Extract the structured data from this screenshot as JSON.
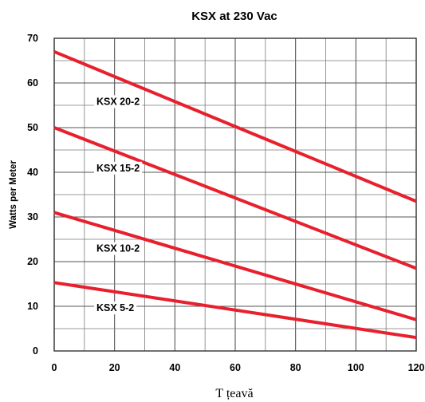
{
  "chart_data": {
    "type": "line",
    "title": "KSX at 230 Vac",
    "xlabel": "T țeavă",
    "ylabel": "Watts per Meter",
    "xlim": [
      0,
      120
    ],
    "ylim": [
      0,
      70
    ],
    "xticks": [
      0,
      20,
      40,
      60,
      80,
      100,
      120
    ],
    "yticks": [
      0,
      10,
      20,
      30,
      40,
      50,
      60,
      70
    ],
    "grid": true,
    "x_minor_step": 10,
    "y_minor_step": 5,
    "line_color": "#e8202d",
    "series": [
      {
        "name": "KSX 20-2",
        "x": [
          0,
          120
        ],
        "y": [
          67,
          33.5
        ],
        "label_x": 14,
        "label_y": 55.7
      },
      {
        "name": "KSX 15-2",
        "x": [
          0,
          120
        ],
        "y": [
          50,
          18.5
        ],
        "label_x": 14,
        "label_y": 40.8
      },
      {
        "name": "KSX 10-2",
        "x": [
          0,
          120
        ],
        "y": [
          31,
          7
        ],
        "label_x": 14,
        "label_y": 22.8
      },
      {
        "name": "KSX 5-2",
        "x": [
          0,
          120
        ],
        "y": [
          15.3,
          3
        ],
        "label_x": 14,
        "label_y": 9.5
      }
    ]
  }
}
